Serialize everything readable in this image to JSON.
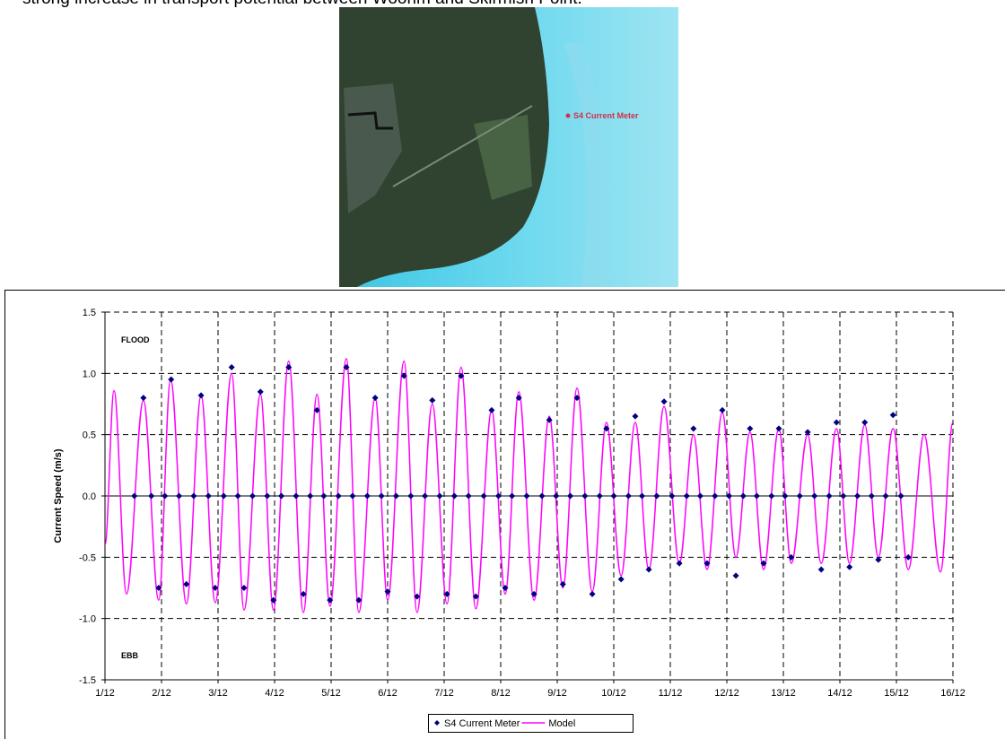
{
  "text": "strong increase in transport potential between Woorim and Skirmish Point.",
  "figure": {
    "label": "S4 Current Meter"
  },
  "chart_data": {
    "type": "line",
    "y_label": "Current Speed (m/s)",
    "annotations": [
      "FLOOD",
      "EBB"
    ],
    "xlim": [
      1,
      16
    ],
    "xticks": [
      {
        "value": 1,
        "label": "1/12"
      },
      {
        "value": 2,
        "label": "2/12"
      },
      {
        "value": 3,
        "label": "3/12"
      },
      {
        "value": 4,
        "label": "4/12"
      },
      {
        "value": 5,
        "label": "5/12"
      },
      {
        "value": 6,
        "label": "6/12"
      },
      {
        "value": 7,
        "label": "7/12"
      },
      {
        "value": 8,
        "label": "8/12"
      },
      {
        "value": 9,
        "label": "9/12"
      },
      {
        "value": 10,
        "label": "10/12"
      },
      {
        "value": 11,
        "label": "11/12"
      },
      {
        "value": 12,
        "label": "12/12"
      },
      {
        "value": 13,
        "label": "13/12"
      },
      {
        "value": 14,
        "label": "14/12"
      },
      {
        "value": 15,
        "label": "15/12"
      },
      {
        "value": 16,
        "label": "16/12"
      }
    ],
    "ylim": [
      -1.5,
      1.5
    ],
    "yticks": [
      {
        "value": 1.5,
        "label": "1.5"
      },
      {
        "value": 1,
        "label": "1.0"
      },
      {
        "value": 0.5,
        "label": "0.5"
      },
      {
        "value": 0,
        "label": "0.0"
      },
      {
        "value": -0.5,
        "label": "-0.5"
      },
      {
        "value": -1,
        "label": "-1.0"
      },
      {
        "value": -1.5,
        "label": "-1.5"
      }
    ],
    "grid": true,
    "legend": "bottom",
    "series": [
      {
        "name": "S4 Current Meter",
        "color": "#000080",
        "kind": "scatter",
        "x": [
          1.52,
          1.68,
          1.82,
          1.95,
          2.06,
          2.17,
          2.31,
          2.44,
          2.57,
          2.7,
          2.83,
          2.95,
          3.1,
          3.24,
          3.35,
          3.46,
          3.61,
          3.75,
          3.87,
          3.98,
          4.12,
          4.25,
          4.38,
          4.51,
          4.63,
          4.75,
          4.87,
          4.98,
          5.13,
          5.27,
          5.38,
          5.49,
          5.64,
          5.78,
          5.89,
          6.0,
          6.15,
          6.29,
          6.41,
          6.52,
          6.66,
          6.79,
          6.92,
          7.05,
          7.18,
          7.3,
          7.43,
          7.56,
          7.7,
          7.84,
          7.96,
          8.08,
          8.2,
          8.32,
          8.46,
          8.59,
          8.73,
          8.86,
          8.98,
          9.1,
          9.23,
          9.35,
          9.49,
          9.62,
          9.75,
          9.87,
          10.0,
          10.13,
          10.26,
          10.38,
          10.5,
          10.62,
          10.76,
          10.89,
          11.03,
          11.16,
          11.29,
          11.41,
          11.53,
          11.65,
          11.79,
          11.92,
          12.04,
          12.16,
          12.29,
          12.41,
          12.53,
          12.65,
          12.79,
          12.92,
          13.03,
          13.14,
          13.29,
          13.43,
          13.55,
          13.67,
          13.81,
          13.94,
          14.06,
          14.17,
          14.31,
          14.44,
          14.56,
          14.68,
          14.81,
          14.94,
          15.08,
          15.21
        ],
        "values": [
          0,
          0.8,
          0,
          -0.75,
          0,
          0.95,
          0,
          -0.72,
          0,
          0.82,
          0,
          -0.75,
          0,
          1.05,
          0,
          -0.75,
          0,
          0.85,
          0,
          -0.85,
          0,
          1.05,
          0,
          -0.8,
          0,
          0.7,
          0,
          -0.85,
          0,
          1.05,
          0,
          -0.85,
          0,
          0.8,
          0,
          -0.78,
          0,
          0.98,
          0,
          -0.82,
          0,
          0.78,
          0,
          -0.8,
          0,
          0.98,
          0,
          -0.82,
          0,
          0.7,
          0,
          -0.75,
          0,
          0.8,
          0,
          -0.8,
          0,
          0.62,
          0,
          -0.72,
          0,
          0.8,
          0,
          -0.8,
          0,
          0.55,
          0,
          -0.68,
          0,
          0.65,
          0,
          -0.6,
          0,
          0.77,
          0,
          -0.55,
          0,
          0.55,
          0,
          -0.55,
          0,
          0.7,
          0,
          -0.65,
          0,
          0.55,
          0,
          -0.55,
          0,
          0.55,
          0,
          -0.5,
          0,
          0.52,
          0,
          -0.6,
          0,
          0.6,
          0,
          -0.58,
          0,
          0.6,
          0,
          -0.52,
          0,
          0.66,
          0,
          -0.5
        ]
      },
      {
        "name": "Model",
        "color": "#ff00ff",
        "kind": "line",
        "x": [
          1.0,
          1.16,
          1.38,
          1.68,
          1.95,
          2.16,
          2.44,
          2.7,
          2.95,
          3.24,
          3.46,
          3.75,
          3.98,
          4.25,
          4.51,
          4.75,
          4.98,
          5.27,
          5.49,
          5.78,
          6.0,
          6.29,
          6.52,
          6.79,
          7.05,
          7.3,
          7.56,
          7.84,
          8.08,
          8.32,
          8.59,
          8.86,
          9.1,
          9.35,
          9.62,
          9.87,
          10.13,
          10.38,
          10.62,
          10.89,
          11.16,
          11.41,
          11.65,
          11.92,
          12.16,
          12.41,
          12.65,
          12.92,
          13.14,
          13.43,
          13.67,
          13.94,
          14.17,
          14.44,
          14.68,
          14.94,
          15.21,
          15.49,
          15.78,
          16.0
        ],
        "values": [
          -0.4,
          0.86,
          -0.8,
          0.78,
          -0.85,
          0.95,
          -0.88,
          0.82,
          -0.87,
          1.0,
          -0.93,
          0.83,
          -0.93,
          1.1,
          -0.95,
          0.83,
          -0.9,
          1.12,
          -0.95,
          0.8,
          -0.85,
          1.1,
          -0.95,
          0.75,
          -0.88,
          1.05,
          -0.92,
          0.7,
          -0.8,
          0.85,
          -0.85,
          0.65,
          -0.75,
          0.88,
          -0.78,
          0.6,
          -0.65,
          0.6,
          -0.6,
          0.73,
          -0.55,
          0.5,
          -0.6,
          0.68,
          -0.5,
          0.52,
          -0.6,
          0.55,
          -0.55,
          0.5,
          -0.55,
          0.55,
          -0.55,
          0.58,
          -0.5,
          0.55,
          -0.6,
          0.5,
          -0.62,
          0.6
        ]
      }
    ]
  }
}
